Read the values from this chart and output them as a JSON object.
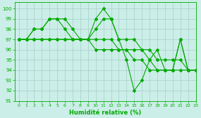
{
  "xlabel": "Humidité relative (%)",
  "bg_color": "#cceee8",
  "grid_color": "#aad4cc",
  "line_color": "#00aa00",
  "xlim": [
    -0.5,
    23
  ],
  "ylim": [
    91,
    100.6
  ],
  "xticks": [
    0,
    1,
    2,
    3,
    4,
    5,
    6,
    7,
    8,
    9,
    10,
    11,
    12,
    13,
    14,
    15,
    16,
    17,
    18,
    19,
    20,
    21,
    22,
    23
  ],
  "yticks": [
    91,
    92,
    93,
    94,
    95,
    96,
    97,
    98,
    99,
    100
  ],
  "series": [
    [
      97,
      97,
      98,
      98,
      99,
      99,
      99,
      98,
      97,
      97,
      98,
      99,
      99,
      97,
      97,
      97,
      96,
      95,
      94,
      94,
      94,
      97,
      94,
      94
    ],
    [
      97,
      97,
      98,
      98,
      99,
      99,
      98,
      97,
      97,
      97,
      99,
      100,
      99,
      97,
      95,
      92,
      93,
      95,
      96,
      94,
      94,
      97,
      94,
      94
    ],
    [
      97,
      97,
      97,
      97,
      97,
      97,
      97,
      97,
      97,
      97,
      97,
      97,
      97,
      96,
      96,
      96,
      96,
      96,
      95,
      95,
      95,
      95,
      94,
      94
    ],
    [
      97,
      97,
      97,
      97,
      97,
      97,
      97,
      97,
      97,
      97,
      96,
      96,
      96,
      96,
      96,
      95,
      95,
      94,
      94,
      94,
      94,
      94,
      94,
      94
    ]
  ]
}
